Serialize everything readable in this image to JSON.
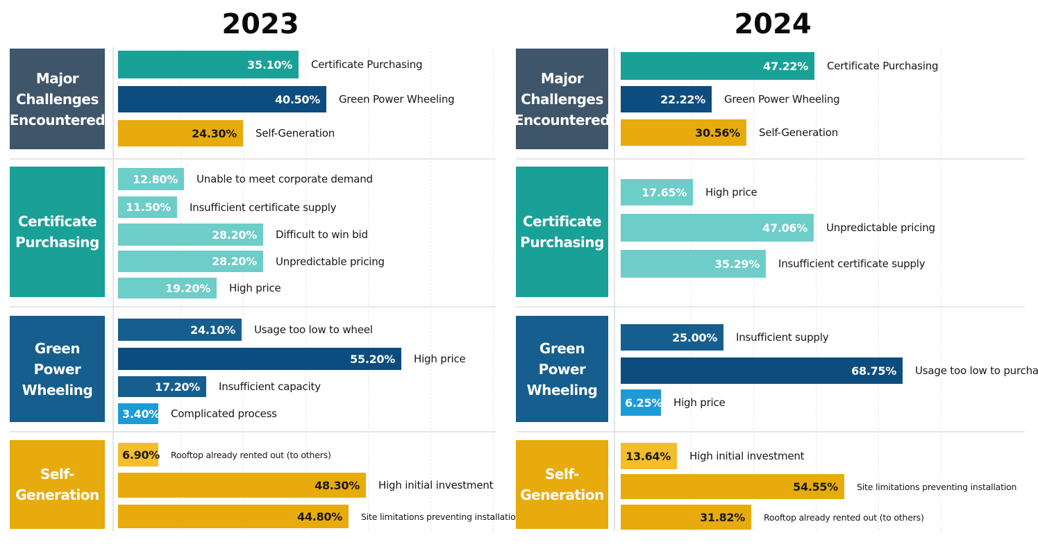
{
  "colors": {
    "header_dark": "#3f5569",
    "teal_dark": "#1aa197",
    "teal_light": "#6dcdc8",
    "navy": "#0d4c7e",
    "navy_mid": "#165e8d",
    "sky": "#1d9bd7",
    "gold": "#e8ab0d",
    "gold_light": "#f3bd2c"
  },
  "chart_data": [
    {
      "type": "bar",
      "orientation": "horizontal",
      "title": "2023",
      "groups": [
        {
          "label": "Major Challenges Encountered",
          "categories": [
            "Certificate Purchasing",
            "Green Power Wheeling",
            "Self-Generation"
          ],
          "values": [
            35.1,
            40.5,
            24.3
          ],
          "value_labels": [
            "35.10%",
            "40.50%",
            "24.30%"
          ],
          "colors": [
            "teal_dark",
            "navy",
            "gold"
          ]
        },
        {
          "label": "Certificate Purchasing",
          "categories": [
            "Unable to meet corporate demand",
            "Insufficient certificate supply",
            "Difficult to win bid",
            "Unpredictable pricing",
            "High price"
          ],
          "values": [
            12.8,
            11.5,
            28.2,
            28.2,
            19.2
          ],
          "value_labels": [
            "12.80%",
            "11.50%",
            "28.20%",
            "28.20%",
            "19.20%"
          ],
          "colors": [
            "teal_light",
            "teal_light",
            "teal_light",
            "teal_light",
            "teal_light"
          ]
        },
        {
          "label": "Green Power Wheeling",
          "categories": [
            "Usage too low to wheel",
            "High price",
            "Insufficient capacity",
            "Complicated process"
          ],
          "values": [
            24.1,
            55.2,
            17.2,
            3.4
          ],
          "value_labels": [
            "24.10%",
            "55.20%",
            "17.20%",
            "3.40%"
          ],
          "colors": [
            "navy_mid",
            "navy",
            "navy_mid",
            "sky"
          ]
        },
        {
          "label": "Self-Generation",
          "categories": [
            "Rooftop already rented out (to others)",
            "High initial investment",
            "Site limitations preventing installation"
          ],
          "values": [
            6.9,
            48.3,
            44.8
          ],
          "value_labels": [
            "6.90%",
            "48.30%",
            "44.80%"
          ],
          "colors": [
            "gold_light",
            "gold",
            "gold"
          ]
        }
      ]
    },
    {
      "type": "bar",
      "orientation": "horizontal",
      "title": "2024",
      "groups": [
        {
          "label": "Major Challenges Encountered",
          "categories": [
            "Certificate Purchasing",
            "Green Power Wheeling",
            "Self-Generation"
          ],
          "values": [
            47.22,
            22.22,
            30.56
          ],
          "value_labels": [
            "47.22%",
            "22.22%",
            "30.56%"
          ],
          "colors": [
            "teal_dark",
            "navy",
            "gold"
          ]
        },
        {
          "label": "Certificate Purchasing",
          "categories": [
            "High price",
            "Unpredictable pricing",
            "Insufficient certificate supply"
          ],
          "values": [
            17.65,
            47.06,
            35.29
          ],
          "value_labels": [
            "17.65%",
            "47.06%",
            "35.29%"
          ],
          "colors": [
            "teal_light",
            "teal_light",
            "teal_light"
          ]
        },
        {
          "label": "Green Power Wheeling",
          "categories": [
            "Insufficient supply",
            "Usage too low to purchase",
            "High price"
          ],
          "values": [
            25.0,
            68.75,
            6.25
          ],
          "value_labels": [
            "25.00%",
            "68.75%",
            "6.25%"
          ],
          "colors": [
            "navy_mid",
            "navy",
            "sky"
          ]
        },
        {
          "label": "Self-Generation",
          "categories": [
            "High initial investment",
            "Site limitations preventing installation",
            "Rooftop already rented out (to others)"
          ],
          "values": [
            13.64,
            54.55,
            31.82
          ],
          "value_labels": [
            "13.64%",
            "54.55%",
            "31.82%"
          ],
          "colors": [
            "gold_light",
            "gold",
            "gold"
          ]
        }
      ]
    }
  ]
}
